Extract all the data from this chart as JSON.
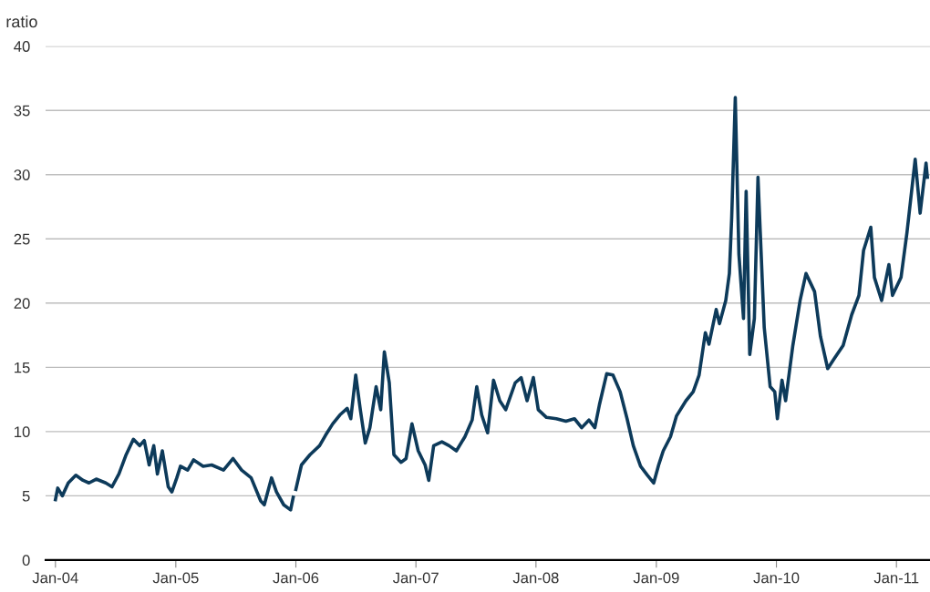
{
  "chart_data": {
    "type": "line",
    "ylabel": "ratio",
    "color": "#0d3a5a",
    "grid": "y",
    "line_style": "solid",
    "marker": "none",
    "x": [
      "2004-01-01",
      "2004-01-08",
      "2004-01-22",
      "2004-02-09",
      "2004-03-03",
      "2004-03-25",
      "2004-04-12",
      "2004-05-04",
      "2004-06-02",
      "2004-06-21",
      "2004-07-12",
      "2004-08-03",
      "2004-08-25",
      "2004-09-13",
      "2004-09-27",
      "2004-10-12",
      "2004-10-26",
      "2004-11-06",
      "2004-11-21",
      "2004-12-09",
      "2004-12-20",
      "2005-01-04",
      "2005-01-15",
      "2005-02-06",
      "2005-02-24",
      "2005-03-25",
      "2005-04-20",
      "2005-05-26",
      "2005-06-24",
      "2005-07-20",
      "2005-08-18",
      "2005-09-16",
      "2005-09-27",
      "2005-10-19",
      "2005-11-03",
      "2005-11-25",
      "2005-12-16",
      "2005-12-24",
      "2005-12-27",
      "2006-01-01",
      "2006-01-18",
      "2006-02-13",
      "2006-03-14",
      "2006-04-01",
      "2006-04-23",
      "2006-05-15",
      "2006-06-06",
      "2006-06-17",
      "2006-07-02",
      "2006-07-16",
      "2006-07-31",
      "2006-08-14",
      "2006-09-02",
      "2006-09-16",
      "2006-09-27",
      "2006-10-12",
      "2006-10-26",
      "2006-11-17",
      "2006-12-02",
      "2006-12-20",
      "2007-01-08",
      "2007-01-29",
      "2007-02-09",
      "2007-02-24",
      "2007-03-21",
      "2007-04-12",
      "2007-05-04",
      "2007-05-30",
      "2007-06-21",
      "2007-07-05",
      "2007-07-20",
      "2007-08-07",
      "2007-08-25",
      "2007-09-13",
      "2007-10-01",
      "2007-10-30",
      "2007-11-17",
      "2007-12-05",
      "2007-12-24",
      "2008-01-08",
      "2008-02-02",
      "2008-03-03",
      "2008-04-01",
      "2008-04-27",
      "2008-05-19",
      "2008-06-10",
      "2008-06-28",
      "2008-07-12",
      "2008-08-03",
      "2008-08-22",
      "2008-09-13",
      "2008-10-04",
      "2008-10-23",
      "2008-11-14",
      "2008-12-05",
      "2008-12-24",
      "2009-01-08",
      "2009-01-22",
      "2009-02-13",
      "2009-03-03",
      "2009-04-01",
      "2009-04-23",
      "2009-05-11",
      "2009-05-30",
      "2009-06-10",
      "2009-07-02",
      "2009-07-12",
      "2009-07-31",
      "2009-08-11",
      "2009-08-18",
      "2009-08-29",
      "2009-09-09",
      "2009-09-23",
      "2009-10-01",
      "2009-10-12",
      "2009-10-26",
      "2009-11-06",
      "2009-11-25",
      "2009-12-13",
      "2009-12-27",
      "2010-01-04",
      "2010-01-18",
      "2010-01-29",
      "2010-02-20",
      "2010-03-14",
      "2010-04-01",
      "2010-04-27",
      "2010-05-15",
      "2010-06-06",
      "2010-06-24",
      "2010-07-23",
      "2010-08-18",
      "2010-09-09",
      "2010-09-23",
      "2010-10-15",
      "2010-10-26",
      "2010-11-17",
      "2010-12-09",
      "2010-12-20",
      "2011-01-15",
      "2011-02-02",
      "2011-02-27",
      "2011-03-14",
      "2011-04-01",
      "2011-04-05"
    ],
    "values": [
      4.7,
      5.6,
      5.0,
      6.0,
      6.6,
      6.2,
      6.0,
      6.3,
      6.0,
      5.7,
      6.7,
      8.2,
      9.4,
      8.9,
      9.3,
      7.4,
      8.9,
      6.7,
      8.5,
      5.7,
      5.3,
      6.4,
      7.3,
      7.0,
      7.8,
      7.3,
      7.4,
      7.0,
      7.9,
      7.0,
      6.4,
      4.6,
      4.3,
      6.4,
      5.3,
      4.3,
      3.9,
      4.9,
      null,
      5.5,
      7.4,
      8.2,
      8.9,
      9.7,
      10.6,
      11.3,
      11.8,
      11.0,
      14.4,
      11.7,
      9.1,
      10.3,
      13.5,
      11.7,
      16.2,
      13.8,
      8.2,
      7.6,
      7.9,
      10.6,
      8.5,
      7.4,
      6.2,
      8.9,
      9.2,
      8.9,
      8.5,
      9.6,
      10.9,
      13.5,
      11.3,
      9.9,
      14.0,
      12.4,
      11.7,
      13.8,
      14.2,
      12.4,
      14.2,
      11.7,
      11.1,
      11.0,
      10.8,
      11.0,
      10.3,
      10.9,
      10.3,
      12.1,
      14.5,
      14.4,
      13.1,
      11.0,
      8.9,
      7.3,
      6.6,
      6.0,
      7.4,
      8.5,
      9.6,
      11.2,
      12.4,
      13.1,
      14.4,
      17.7,
      16.8,
      19.5,
      18.4,
      20.2,
      22.3,
      26.6,
      36.0,
      23.8,
      18.8,
      28.7,
      16.0,
      18.8,
      29.8,
      18.1,
      13.5,
      13.1,
      11.0,
      14.0,
      12.4,
      16.7,
      20.2,
      22.3,
      20.9,
      17.4,
      14.9,
      15.6,
      16.7,
      19.1,
      20.6,
      24.1,
      25.9,
      22.0,
      20.2,
      23.0,
      20.6,
      22.0,
      25.5,
      31.2,
      27.0,
      30.9,
      29.8
    ],
    "xlim": [
      "2003-12-02",
      "2011-04-13"
    ],
    "ylim": [
      0,
      40
    ],
    "xticks": [
      {
        "value": "2004-01-01",
        "label": "Jan-04"
      },
      {
        "value": "2005-01-01",
        "label": "Jan-05"
      },
      {
        "value": "2006-01-01",
        "label": "Jan-06"
      },
      {
        "value": "2007-01-01",
        "label": "Jan-07"
      },
      {
        "value": "2008-01-01",
        "label": "Jan-08"
      },
      {
        "value": "2009-01-01",
        "label": "Jan-09"
      },
      {
        "value": "2010-01-01",
        "label": "Jan-10"
      },
      {
        "value": "2011-01-01",
        "label": "Jan-11"
      }
    ],
    "yticks": [
      0,
      5,
      10,
      15,
      20,
      25,
      30,
      35,
      40
    ]
  }
}
